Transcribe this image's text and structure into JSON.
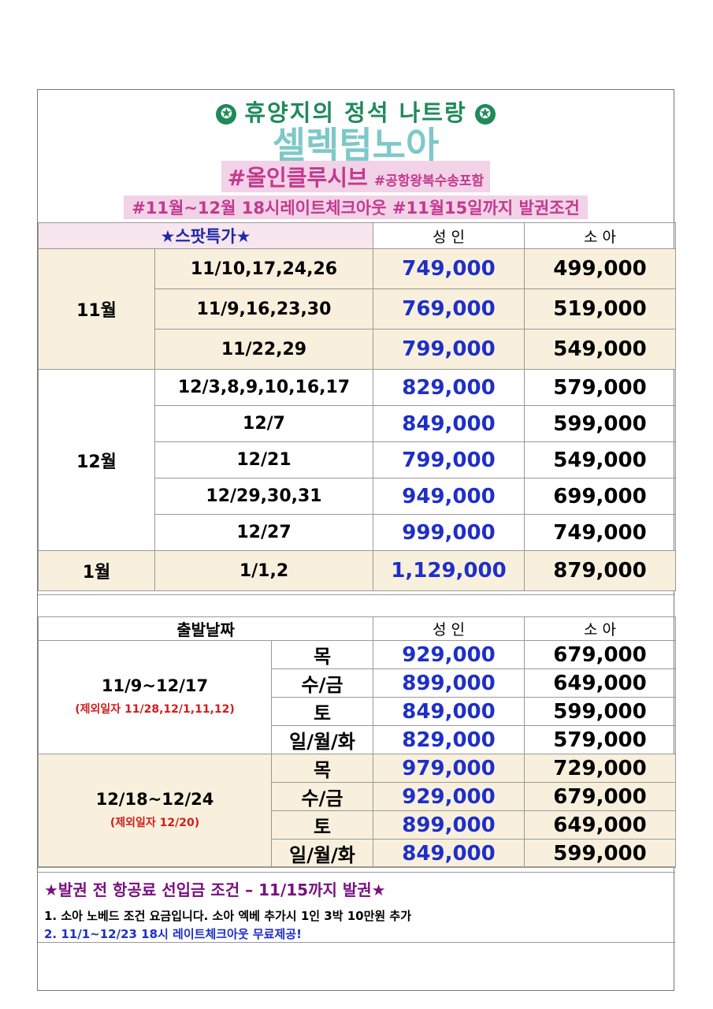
{
  "header": {
    "line1": "휴양지의 정석 나트랑",
    "star_glyph": "✪",
    "line2": "셀렉텀노아",
    "line3_main": "#올인클루시브",
    "line3_sub": "#공항왕복수송포함",
    "line4": "#11월~12월 18시레이트체크아웃 #11월15일까지 발권조건"
  },
  "table1": {
    "head": {
      "spot": "★스팟특가★",
      "adult": "성 인",
      "child": "소 아"
    },
    "groups": [
      {
        "month": "11월",
        "rows": [
          {
            "dates": "11/10,17,24,26",
            "adult": "749,000",
            "child": "499,000"
          },
          {
            "dates": "11/9,16,23,30",
            "adult": "769,000",
            "child": "519,000"
          },
          {
            "dates": "11/22,29",
            "adult": "799,000",
            "child": "549,000"
          }
        ]
      },
      {
        "month": "12월",
        "rows": [
          {
            "dates": "12/3,8,9,10,16,17",
            "adult": "829,000",
            "child": "579,000"
          },
          {
            "dates": "12/7",
            "adult": "849,000",
            "child": "599,000"
          },
          {
            "dates": "12/21",
            "adult": "799,000",
            "child": "549,000"
          },
          {
            "dates": "12/29,30,31",
            "adult": "949,000",
            "child": "699,000"
          },
          {
            "dates": "12/27",
            "adult": "999,000",
            "child": "749,000"
          }
        ]
      },
      {
        "month": "1월",
        "rows": [
          {
            "dates": "1/1,2",
            "adult": "1,129,000",
            "child": "879,000"
          }
        ]
      }
    ]
  },
  "table2": {
    "head": {
      "label": "출발날짜",
      "adult": "성 인",
      "child": "소 아"
    },
    "periods": [
      {
        "range": "11/9~12/17",
        "exclude": "(제외일자 11/28,12/1,11,12)",
        "rows": [
          {
            "day": "목",
            "adult": "929,000",
            "child": "679,000"
          },
          {
            "day": "수/금",
            "adult": "899,000",
            "child": "649,000"
          },
          {
            "day": "토",
            "adult": "849,000",
            "child": "599,000"
          },
          {
            "day": "일/월/화",
            "adult": "829,000",
            "child": "579,000"
          }
        ]
      },
      {
        "range": "12/18~12/24",
        "exclude": "(제외일자 12/20)",
        "rows": [
          {
            "day": "목",
            "adult": "979,000",
            "child": "729,000"
          },
          {
            "day": "수/금",
            "adult": "929,000",
            "child": "679,000"
          },
          {
            "day": "토",
            "adult": "899,000",
            "child": "649,000"
          },
          {
            "day": "일/월/화",
            "adult": "849,000",
            "child": "599,000"
          }
        ]
      }
    ]
  },
  "notes": {
    "title": "★발권 전 항공료 선입금 조건 – 11/15까지 발권★",
    "line1": "1. 소아 노베드 조건 요금입니다. 소아 엑베 추가시 1인 3박 10만원 추가",
    "line2": "2. 11/1~12/23 18시 레이트체크아웃 무료제공!"
  },
  "colors": {
    "green": "#1f8a5b",
    "teal": "#7ec8c8",
    "pink": "#c23a8f",
    "highlight": "#f2d2e6",
    "beige": "#f8f0dc",
    "blue": "#1e2fc8",
    "purple": "#7a1080",
    "red": "#d21c1c"
  }
}
